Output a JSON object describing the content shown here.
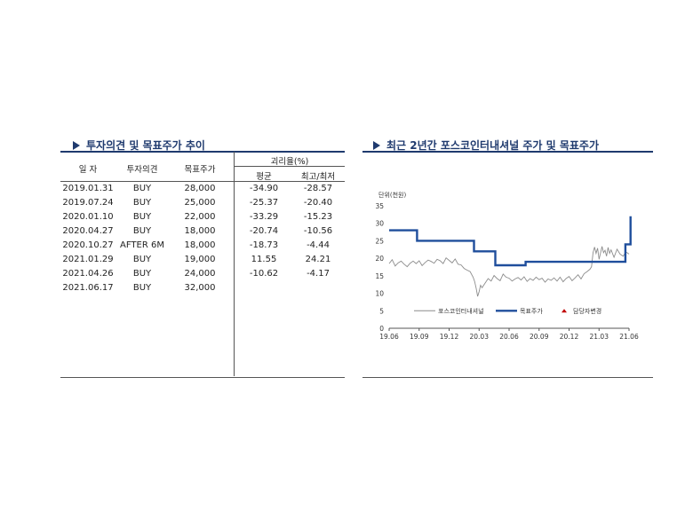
{
  "left": {
    "title": "투자의견 및 목표주가 추이",
    "headers": {
      "date": "일 자",
      "opinion": "투자의견",
      "target": "목표주가",
      "gap": "괴리율(%)",
      "avg": "평균",
      "hilo": "최고/최저"
    },
    "rows": [
      [
        "2019.01.31",
        "BUY",
        "28,000",
        "-34.90",
        "-28.57"
      ],
      [
        "2019.07.24",
        "BUY",
        "25,000",
        "-25.37",
        "-20.40"
      ],
      [
        "2020.01.10",
        "BUY",
        "22,000",
        "-33.29",
        "-15.23"
      ],
      [
        "2020.04.27",
        "BUY",
        "18,000",
        "-20.74",
        "-10.56"
      ],
      [
        "2020.10.27",
        "AFTER 6M",
        "18,000",
        "-18.73",
        "-4.44"
      ],
      [
        "2021.01.29",
        "BUY",
        "19,000",
        "11.55",
        "24.21"
      ],
      [
        "2021.04.26",
        "BUY",
        "24,000",
        "-10.62",
        "-4.17"
      ],
      [
        "2021.06.17",
        "BUY",
        "32,000",
        "",
        ""
      ]
    ]
  },
  "right": {
    "title": "최근 2년간 포스코인터내셔널 주가 및 목표주가"
  },
  "chart_data": {
    "type": "line",
    "unit_label": "단위(천원)",
    "ylim": [
      0,
      35
    ],
    "y_ticks": [
      "0",
      "5",
      "10",
      "15",
      "20",
      "25",
      "30",
      "35"
    ],
    "x_ticks": [
      "19.06",
      "19.09",
      "19.12",
      "20.03",
      "20.06",
      "20.09",
      "20.12",
      "21.03",
      "21.06"
    ],
    "legend": [
      "포스코인터내셔널",
      "목표주가",
      "담당자변경"
    ],
    "colors": {
      "price": "#8c8c8c",
      "target": "#1f4e9c",
      "change": "#c00000"
    },
    "series": [
      {
        "name": "목표주가",
        "style": "step",
        "x": [
          0.0,
          0.18,
          0.93,
          2.83,
          3.1,
          3.54,
          3.93,
          4.55,
          6.6,
          7.88,
          8.05
        ],
        "values": [
          28,
          28,
          25,
          22,
          22,
          18,
          18,
          19,
          19,
          24,
          32
        ]
      },
      {
        "name": "포스코인터내셔널",
        "style": "line",
        "x": [
          0.0,
          0.1,
          0.2,
          0.3,
          0.4,
          0.5,
          0.6,
          0.7,
          0.8,
          0.9,
          1.0,
          1.1,
          1.2,
          1.3,
          1.4,
          1.5,
          1.6,
          1.7,
          1.8,
          1.9,
          2.0,
          2.1,
          2.2,
          2.3,
          2.4,
          2.5,
          2.6,
          2.7,
          2.8,
          2.85,
          2.9,
          2.95,
          3.0,
          3.05,
          3.1,
          3.2,
          3.3,
          3.4,
          3.5,
          3.6,
          3.7,
          3.8,
          3.9,
          4.0,
          4.1,
          4.2,
          4.3,
          4.4,
          4.5,
          4.6,
          4.7,
          4.8,
          4.9,
          5.0,
          5.1,
          5.2,
          5.3,
          5.4,
          5.5,
          5.6,
          5.7,
          5.8,
          5.9,
          6.0,
          6.1,
          6.2,
          6.3,
          6.4,
          6.5,
          6.6,
          6.7,
          6.75,
          6.8,
          6.85,
          6.9,
          6.95,
          7.0,
          7.05,
          7.1,
          7.15,
          7.2,
          7.25,
          7.3,
          7.35,
          7.4,
          7.5,
          7.6,
          7.7,
          7.8,
          7.9,
          8.0
        ],
        "values": [
          18.5,
          19.6,
          17.8,
          18.7,
          19.2,
          18.3,
          17.6,
          18.6,
          19.2,
          18.5,
          19.3,
          17.9,
          18.8,
          19.5,
          19.1,
          18.6,
          19.7,
          19.3,
          18.5,
          20.1,
          19.4,
          18.7,
          19.8,
          18.3,
          18.1,
          17.1,
          16.6,
          16.2,
          14.6,
          13.4,
          11.5,
          9.1,
          10.5,
          12.3,
          11.6,
          12.9,
          14.2,
          13.5,
          15.1,
          14.2,
          13.6,
          15.5,
          14.6,
          14.3,
          13.5,
          14.1,
          14.5,
          13.8,
          14.7,
          13.4,
          14.2,
          13.7,
          14.6,
          13.9,
          14.3,
          13.2,
          14.1,
          13.7,
          14.4,
          13.5,
          14.6,
          13.3,
          14.2,
          14.8,
          13.6,
          14.4,
          15.3,
          14.1,
          15.6,
          16.2,
          16.9,
          17.6,
          21.6,
          23.2,
          21.4,
          22.9,
          19.7,
          21.5,
          23.4,
          21.6,
          22.3,
          20.6,
          23.1,
          21.4,
          22.4,
          20.3,
          22.6,
          21.2,
          20.6,
          21.8,
          21.2
        ]
      }
    ],
    "markers": [
      {
        "name": "담당자변경",
        "x": [],
        "values": []
      }
    ]
  }
}
